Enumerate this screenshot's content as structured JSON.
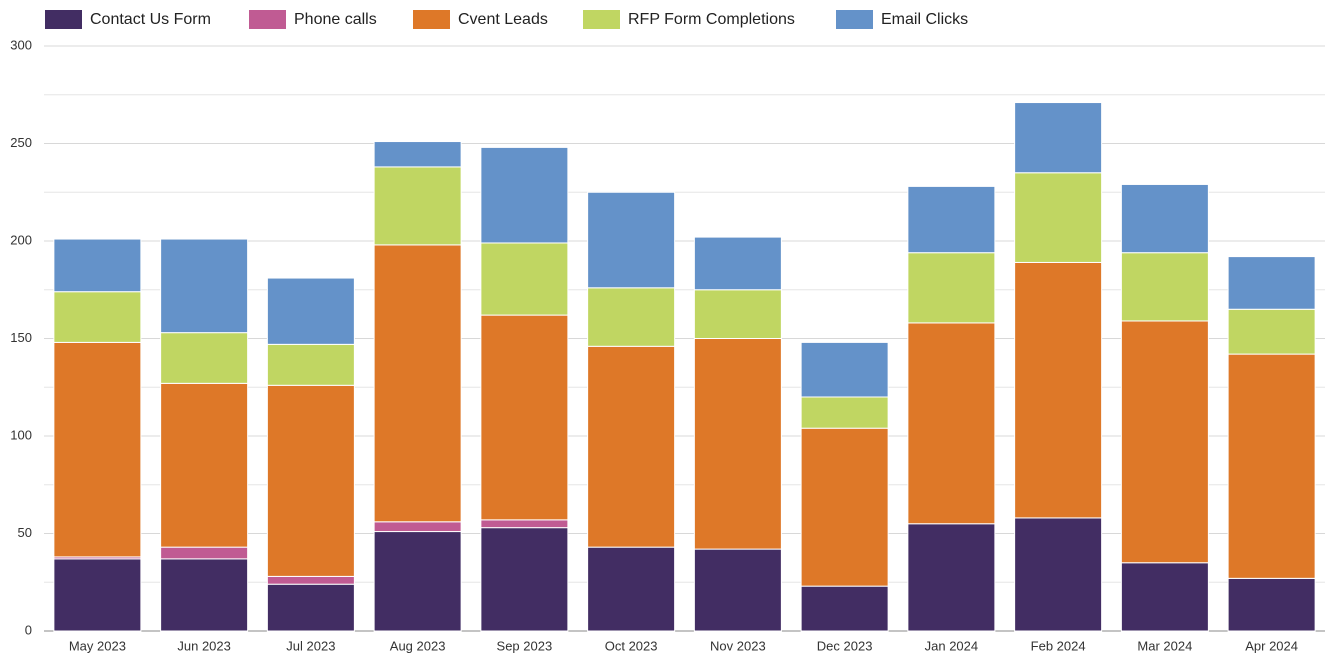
{
  "chart_data": {
    "type": "stacked_bar",
    "categories": [
      "May 2023",
      "Jun 2023",
      "Jul 2023",
      "Aug 2023",
      "Sep 2023",
      "Oct 2023",
      "Nov 2023",
      "Dec 2023",
      "Jan 2024",
      "Feb 2024",
      "Mar 2024",
      "Apr 2024"
    ],
    "series": [
      {
        "name": "Contact Us Form",
        "color": "#422d63",
        "values": [
          37,
          37,
          24,
          51,
          53,
          43,
          42,
          23,
          55,
          58,
          35,
          27
        ]
      },
      {
        "name": "Phone calls",
        "color": "#c05b93",
        "values": [
          1,
          6,
          4,
          5,
          4,
          0,
          0,
          0,
          0,
          0,
          0,
          0
        ]
      },
      {
        "name": "Cvent Leads",
        "color": "#de7828",
        "values": [
          110,
          84,
          98,
          142,
          105,
          103,
          108,
          81,
          103,
          131,
          124,
          115
        ]
      },
      {
        "name": "RFP Form Completions",
        "color": "#c0d662",
        "values": [
          26,
          26,
          21,
          40,
          37,
          30,
          25,
          16,
          36,
          46,
          35,
          23
        ]
      },
      {
        "name": "Email Clicks",
        "color": "#6492c9",
        "values": [
          27,
          48,
          34,
          13,
          49,
          49,
          27,
          28,
          34,
          36,
          35,
          27
        ]
      }
    ],
    "ylim": [
      0,
      300
    ],
    "yticks": [
      0,
      50,
      100,
      150,
      200,
      250,
      300
    ],
    "minor_grid": [
      25,
      75,
      125,
      175,
      225,
      275
    ],
    "grid": true,
    "legend": "top"
  }
}
